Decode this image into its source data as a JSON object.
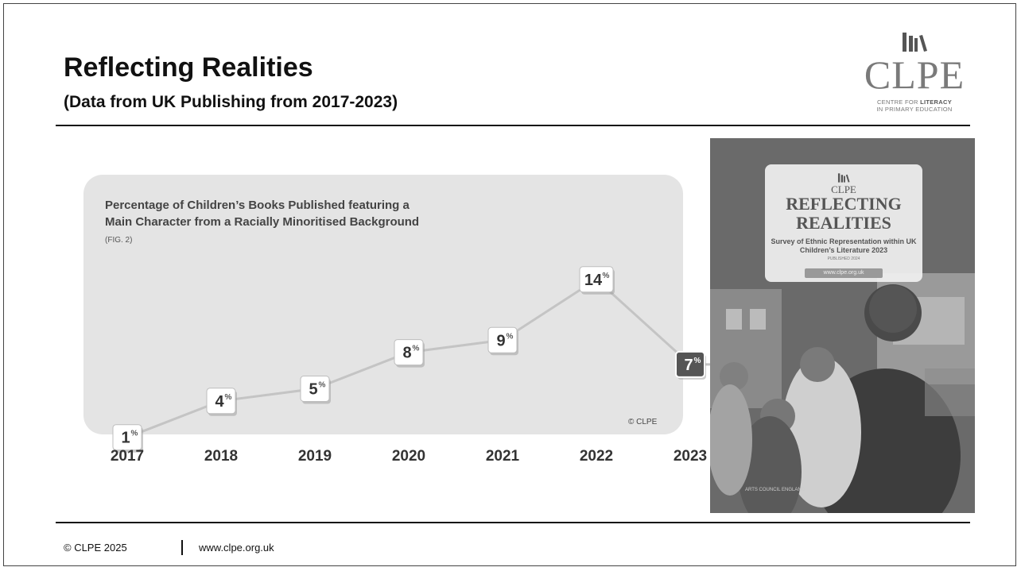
{
  "slide": {
    "title": "Reflecting Realities",
    "subtitle": "(Data from UK Publishing from 2017-2023)"
  },
  "logo": {
    "word": "CLPE",
    "tagline_line1": "CENTRE FOR",
    "tagline_line1_bold": "LITERACY",
    "tagline_line2": "IN PRIMARY EDUCATION"
  },
  "chart_data": {
    "type": "line",
    "title": "Percentage of Children’s Books Published featuring a Main Character from a Racially Minoritised Background",
    "fig_label": "(FIG. 2)",
    "credit": "© CLPE",
    "x": [
      "2017",
      "2018",
      "2019",
      "2020",
      "2021",
      "2022",
      "2023"
    ],
    "values": [
      1,
      4,
      5,
      8,
      9,
      14,
      7
    ],
    "value_suffix": "%",
    "value_labels": [
      "1",
      "4",
      "5",
      "8",
      "9",
      "14",
      "7"
    ]
  },
  "cover": {
    "brand": "CLPE",
    "title_line1": "REFLECTING",
    "title_line2": "REALITIES",
    "subtitle": "Survey of Ethnic Representation within UK Children’s Literature 2023",
    "published": "PUBLISHED 2024",
    "url": "www.clpe.org.uk",
    "funder": "ARTS COUNCIL ENGLAND"
  },
  "footer": {
    "copyright": "© CLPE 2025",
    "url": "www.clpe.org.uk"
  },
  "colors": {
    "panel": "#e4e4e4",
    "line": "#c4c4c4",
    "label_box": "#ffffff",
    "dark_label_box": "#555555"
  }
}
